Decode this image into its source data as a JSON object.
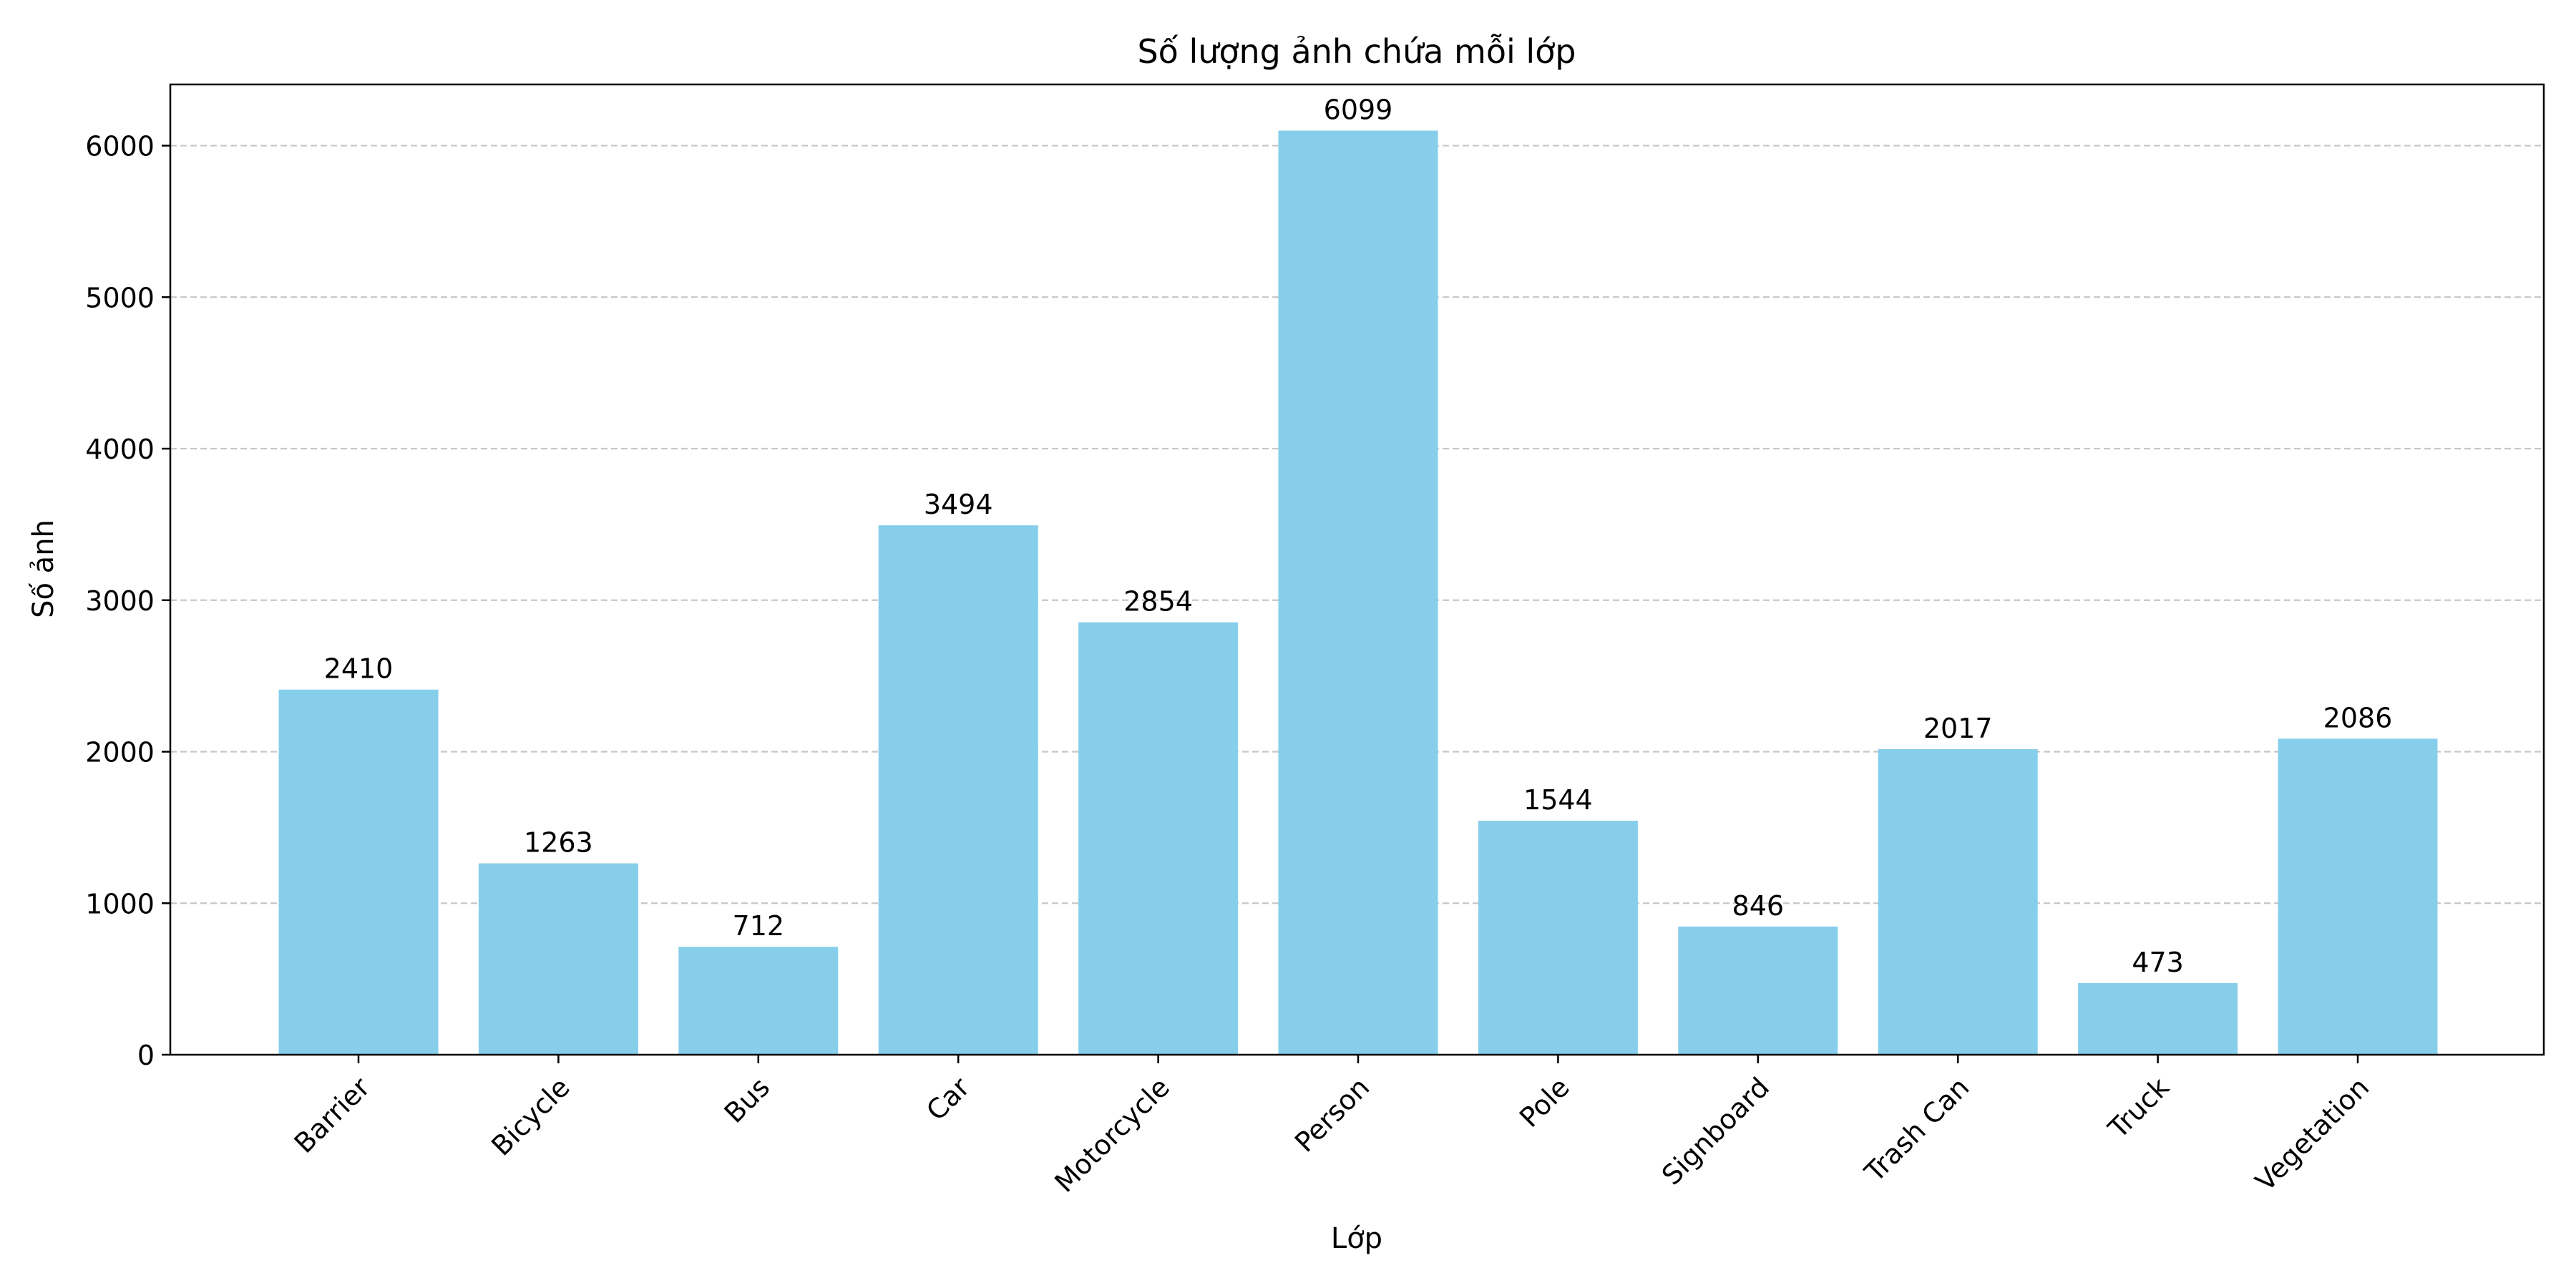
{
  "chart_data": {
    "type": "bar",
    "title": "Số lượng ảnh chứa mỗi lớp",
    "xlabel": "Lớp",
    "ylabel": "Số ảnh",
    "categories": [
      "Barrier",
      "Bicycle",
      "Bus",
      "Car",
      "Motorcycle",
      "Person",
      "Pole",
      "Signboard",
      "Trash Can",
      "Truck",
      "Vegetation"
    ],
    "values": [
      2410,
      1263,
      712,
      3494,
      2854,
      6099,
      1544,
      846,
      2017,
      473,
      2086
    ],
    "ylim": [
      0,
      6404
    ],
    "yticks": [
      0,
      1000,
      2000,
      3000,
      4000,
      5000,
      6000
    ],
    "grid": "y-dashed",
    "bar_color": "#87ceeb",
    "data_labels": true
  }
}
